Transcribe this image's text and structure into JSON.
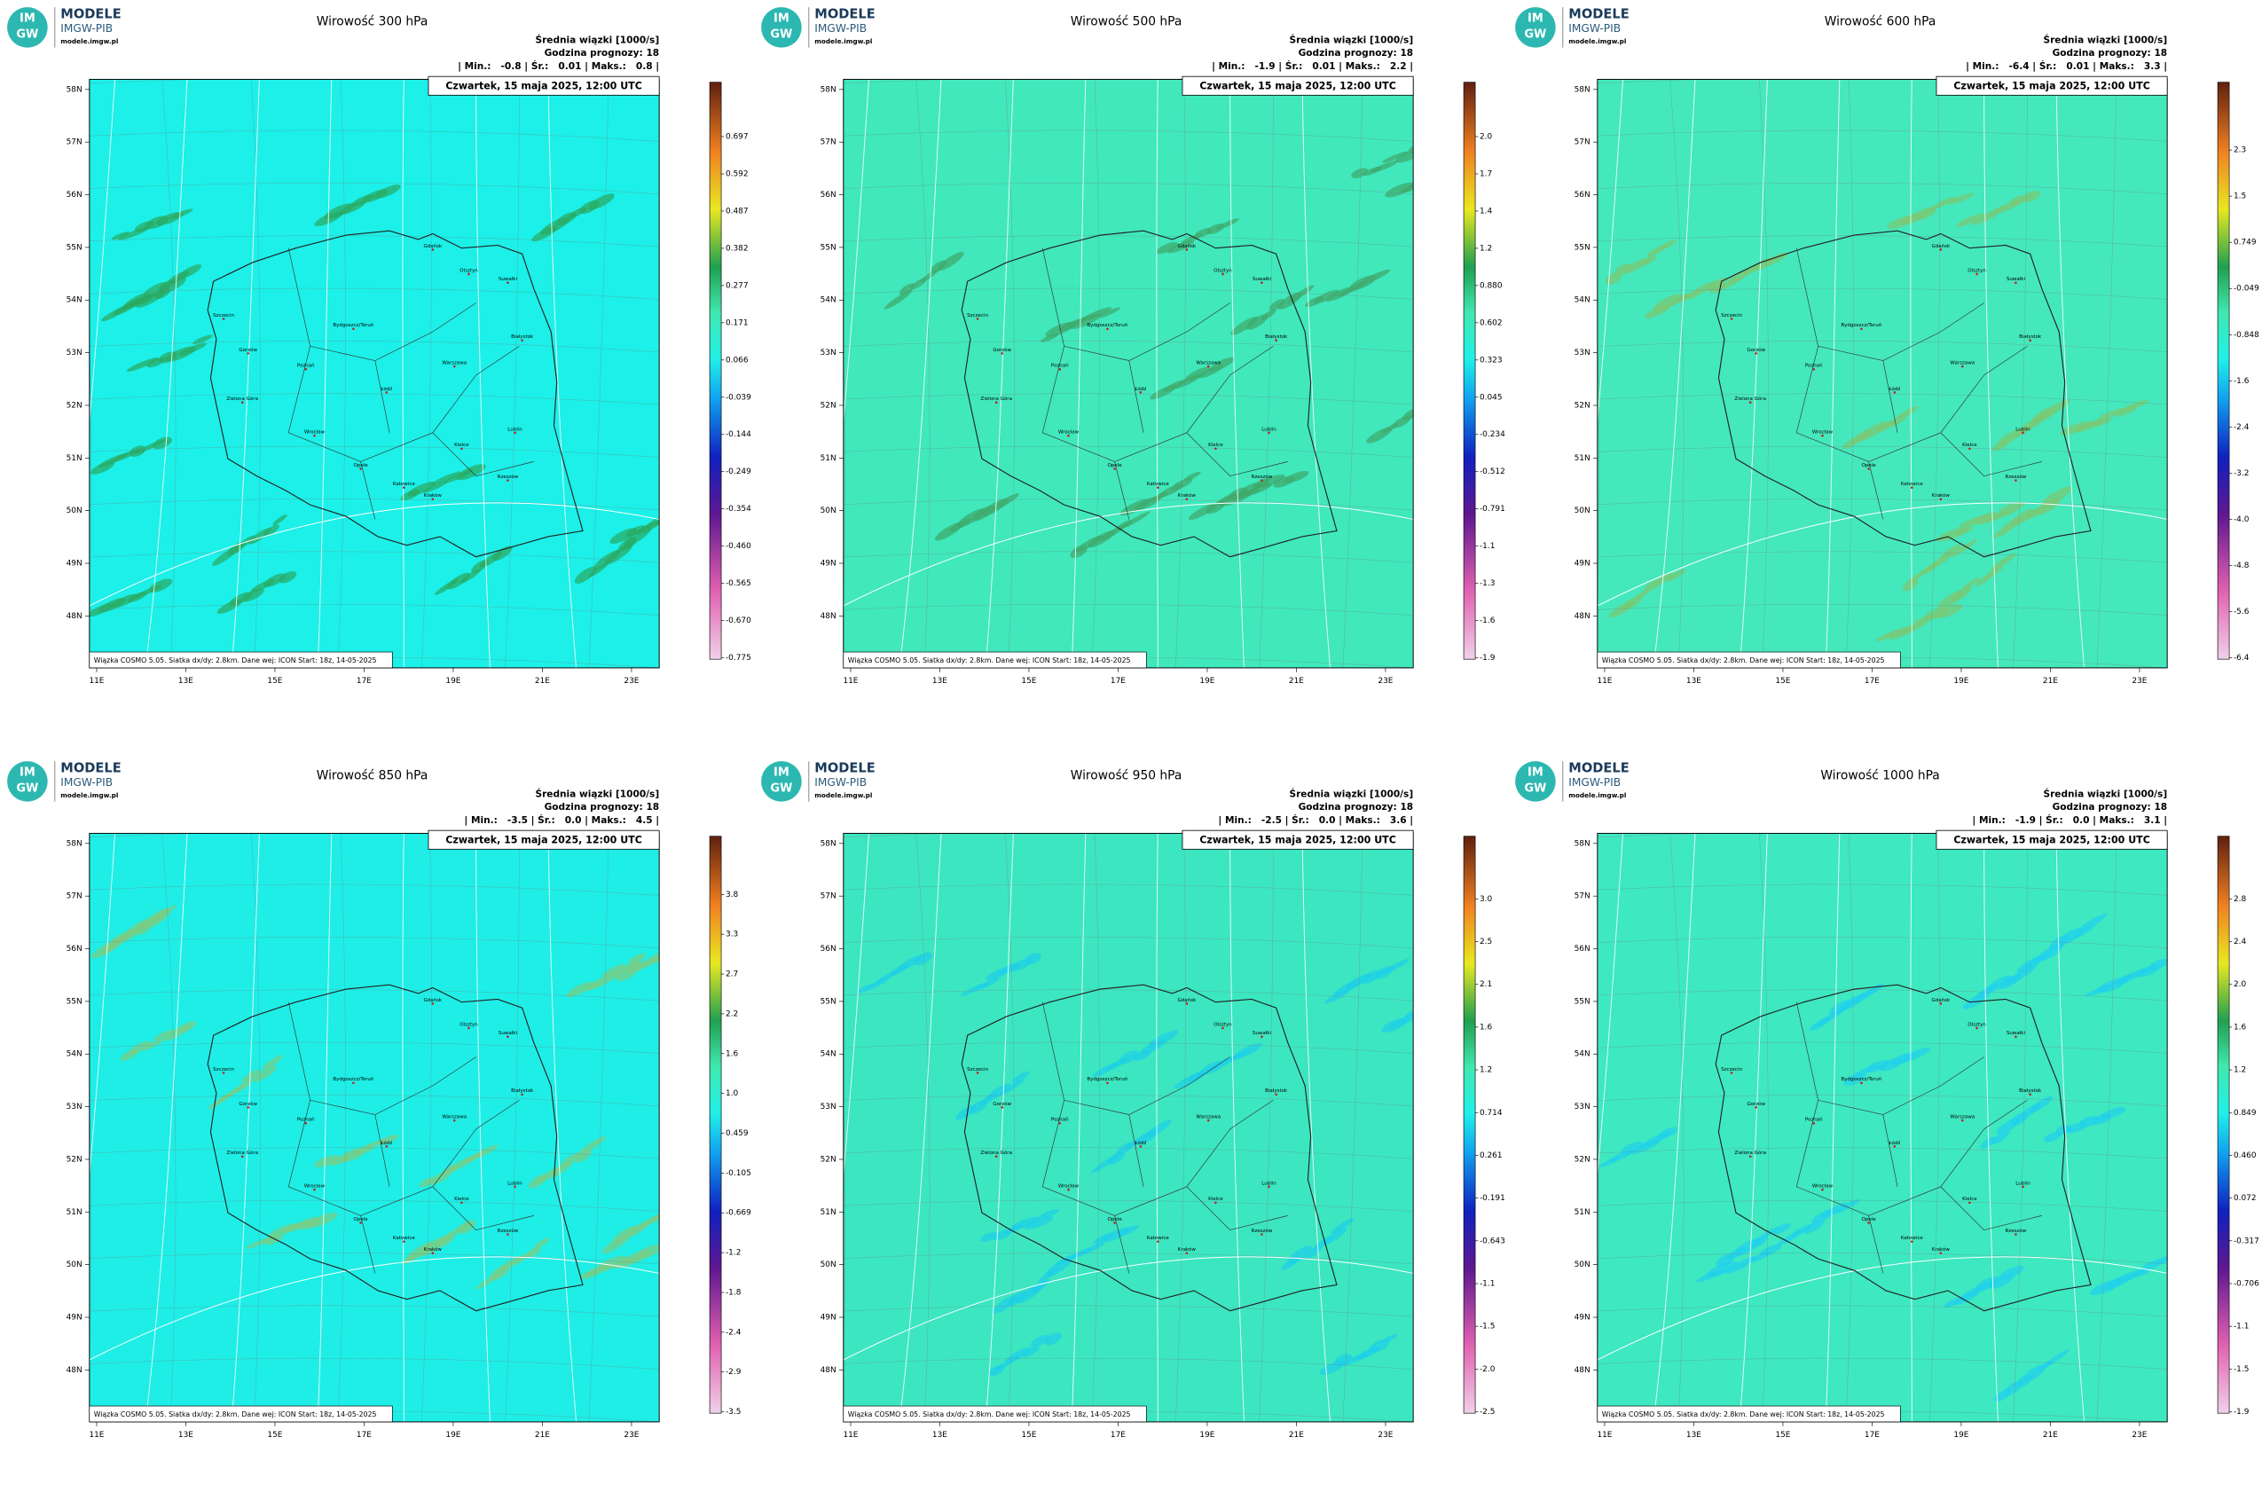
{
  "logo": {
    "badge_top": "IM",
    "badge_bottom": "GW",
    "name": "MODELE",
    "org": "IMGW-PIB",
    "url": "modele.imgw.pl"
  },
  "lat_labels": [
    "58N",
    "57N",
    "56N",
    "55N",
    "54N",
    "53N",
    "52N",
    "51N",
    "50N",
    "49N",
    "48N"
  ],
  "lon_labels": [
    "11E",
    "13E",
    "15E",
    "17E",
    "19E",
    "21E",
    "23E"
  ],
  "cities": [
    "Gdańsk",
    "Olsztyn",
    "Suwałki",
    "Szczecin",
    "Bydgoszcz/Toruń",
    "Białystok",
    "Gorzów",
    "Poznań",
    "Warszawa",
    "Łódź",
    "Zielona Góra",
    "Lublin",
    "Wrocław",
    "Kielce",
    "Opole",
    "Katowice",
    "Kraków",
    "Rzeszów"
  ],
  "panels": [
    {
      "title": "Wirowość 300 hPa",
      "subtitle": "Średnia wiązki [1000/s]",
      "forecast": "Godzina prognozy: 18",
      "stats": "| Min.:   -0.8 | Śr.:   0.01 | Maks.:   0.8 |",
      "date": "Czwartek, 15 maja 2025, 12:00 UTC",
      "footer": "Wiązka COSMO 5.05. Siatka dx/dy: 2.8km. Dane wej: ICON Start: 18z, 14-05-2025",
      "map_color": "#1cf0e8",
      "streak_color": "#2aa860",
      "colorbar": [
        "0.697",
        "0.592",
        "0.487",
        "0.382",
        "0.277",
        "0.171",
        "0.066",
        "-0.039",
        "-0.144",
        "-0.249",
        "-0.354",
        "-0.460",
        "-0.565",
        "-0.670",
        "-0.775"
      ]
    },
    {
      "title": "Wirowość 500 hPa",
      "subtitle": "Średnia wiązki [1000/s]",
      "forecast": "Godzina prognozy: 18",
      "stats": "| Min.:   -1.9 | Śr.:   0.01 | Maks.:   2.2 |",
      "date": "Czwartek, 15 maja 2025, 12:00 UTC",
      "footer": "Wiązka COSMO 5.05. Siatka dx/dy: 2.8km. Dane wej: ICON Start: 18z, 14-05-2025",
      "map_color": "#40e8bc",
      "streak_color": "#3fa86a",
      "colorbar": [
        "2.0",
        "1.7",
        "1.4",
        "1.2",
        "0.880",
        "0.602",
        "0.323",
        "0.045",
        "-0.234",
        "-0.512",
        "-0.791",
        "-1.1",
        "-1.3",
        "-1.6",
        "-1.9"
      ]
    },
    {
      "title": "Wirowość 600 hPa",
      "subtitle": "Średnia wiązki [1000/s]",
      "forecast": "Godzina prognozy: 18",
      "stats": "| Min.:   -6.4 | Śr.:   0.01 | Maks.:   3.3 |",
      "date": "Czwartek, 15 maja 2025, 12:00 UTC",
      "footer": "Wiązka COSMO 5.05. Siatka dx/dy: 2.8km. Dane wej: ICON Start: 18z, 14-05-2025",
      "map_color": "#44e8bc",
      "streak_color": "#7cc870",
      "colorbar": [
        "2.3",
        "1.5",
        "0.749",
        "-0.049",
        "-0.848",
        "-1.6",
        "-2.4",
        "-3.2",
        "-4.0",
        "-4.8",
        "-5.6",
        "-6.4"
      ]
    },
    {
      "title": "Wirowość 850 hPa",
      "subtitle": "Średnia wiązki [1000/s]",
      "forecast": "Godzina prognozy: 18",
      "stats": "| Min.:   -3.5 | Śr.:   0.0 | Maks.:   4.5 |",
      "date": "Czwartek, 15 maja 2025, 12:00 UTC",
      "footer": "Wiązka COSMO 5.05. Siatka dx/dy: 2.8km. Dane wej: ICON Start: 18z, 14-05-2025",
      "map_color": "#1eeee6",
      "streak_color": "#7ccc80",
      "colorbar": [
        "3.8",
        "3.3",
        "2.7",
        "2.2",
        "1.6",
        "1.0",
        "0.459",
        "-0.105",
        "-0.669",
        "-1.2",
        "-1.8",
        "-2.4",
        "-2.9",
        "-3.5"
      ]
    },
    {
      "title": "Wirowość 950 hPa",
      "subtitle": "Średnia wiązki [1000/s]",
      "forecast": "Godzina prognozy: 18",
      "stats": "| Min.:   -2.5 | Śr.:   0.0 | Maks.:   3.6 |",
      "date": "Czwartek, 15 maja 2025, 12:00 UTC",
      "footer": "Wiązka COSMO 5.05. Siatka dx/dy: 2.8km. Dane wej: ICON Start: 18z, 14-05-2025",
      "map_color": "#3ce6c0",
      "streak_color": "#1ccfe8",
      "colorbar": [
        "3.0",
        "2.5",
        "2.1",
        "1.6",
        "1.2",
        "0.714",
        "0.261",
        "-0.191",
        "-0.643",
        "-1.1",
        "-1.5",
        "-2.0",
        "-2.5"
      ]
    },
    {
      "title": "Wirowość 1000 hPa",
      "subtitle": "Średnia wiązki [1000/s]",
      "forecast": "Godzina prognozy: 18",
      "stats": "| Min.:   -1.9 | Śr.:   0.0 | Maks.:   3.1 |",
      "date": "Czwartek, 15 maja 2025, 12:00 UTC",
      "footer": "Wiązka COSMO 5.05. Siatka dx/dy: 2.8km. Dane wej: ICON Start: 18z, 14-05-2025",
      "map_color": "#3ee8c0",
      "streak_color": "#20d0ec",
      "colorbar": [
        "2.8",
        "2.4",
        "2.0",
        "1.6",
        "1.2",
        "0.849",
        "0.460",
        "0.072",
        "-0.317",
        "-0.706",
        "-1.1",
        "-1.5",
        "-1.9"
      ]
    }
  ]
}
